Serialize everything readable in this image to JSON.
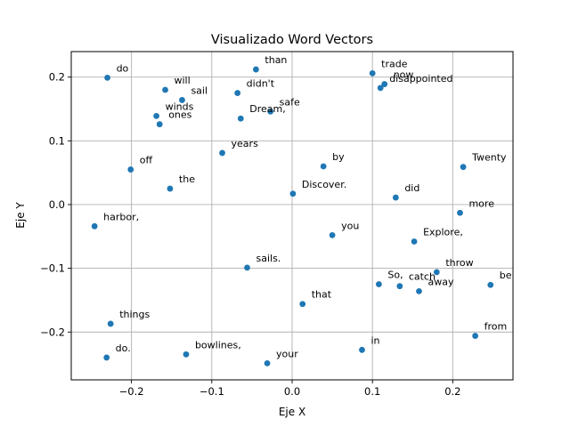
{
  "chart_data": {
    "type": "scatter",
    "title": "Visualizado Word Vectors",
    "xlabel": "Eje X",
    "ylabel": "Eje Y",
    "xlim": [
      -0.275,
      0.275
    ],
    "ylim": [
      -0.275,
      0.24
    ],
    "xticks": [
      -0.2,
      -0.1,
      0.0,
      0.1,
      0.2
    ],
    "xtick_labels": [
      "−0.2",
      "−0.1",
      "0.0",
      "0.1",
      "0.2"
    ],
    "yticks": [
      -0.2,
      -0.1,
      0.0,
      0.1,
      0.2
    ],
    "ytick_labels": [
      "−0.2",
      "−0.1",
      "0.0",
      "0.1",
      "0.2"
    ],
    "grid": true,
    "marker_color": "#1f77b4",
    "points": [
      {
        "label": "do",
        "x": -0.23,
        "y": 0.199
      },
      {
        "label": "will",
        "x": -0.158,
        "y": 0.18
      },
      {
        "label": "sail",
        "x": -0.137,
        "y": 0.164
      },
      {
        "label": "winds",
        "x": -0.169,
        "y": 0.139
      },
      {
        "label": "ones",
        "x": -0.165,
        "y": 0.126
      },
      {
        "label": "than",
        "x": -0.045,
        "y": 0.212
      },
      {
        "label": "didn't",
        "x": -0.068,
        "y": 0.175
      },
      {
        "label": "safe",
        "x": -0.027,
        "y": 0.146
      },
      {
        "label": "Dream,",
        "x": -0.064,
        "y": 0.135
      },
      {
        "label": "trade",
        "x": 0.1,
        "y": 0.206
      },
      {
        "label": "now",
        "x": 0.115,
        "y": 0.189
      },
      {
        "label": "disappointed",
        "x": 0.11,
        "y": 0.183
      },
      {
        "label": "years",
        "x": -0.087,
        "y": 0.081
      },
      {
        "label": "off",
        "x": -0.201,
        "y": 0.055
      },
      {
        "label": "the",
        "x": -0.152,
        "y": 0.025
      },
      {
        "label": "by",
        "x": 0.039,
        "y": 0.06
      },
      {
        "label": "Twenty",
        "x": 0.213,
        "y": 0.059
      },
      {
        "label": "Discover.",
        "x": 0.001,
        "y": 0.017
      },
      {
        "label": "did",
        "x": 0.129,
        "y": 0.011
      },
      {
        "label": "more",
        "x": 0.209,
        "y": -0.013
      },
      {
        "label": "harbor,",
        "x": -0.246,
        "y": -0.034
      },
      {
        "label": "you",
        "x": 0.05,
        "y": -0.048
      },
      {
        "label": "Explore,",
        "x": 0.152,
        "y": -0.058
      },
      {
        "label": "sails.",
        "x": -0.056,
        "y": -0.099
      },
      {
        "label": "throw",
        "x": 0.18,
        "y": -0.106
      },
      {
        "label": "be",
        "x": 0.247,
        "y": -0.126
      },
      {
        "label": "So,",
        "x": 0.108,
        "y": -0.125
      },
      {
        "label": "catch",
        "x": 0.134,
        "y": -0.128
      },
      {
        "label": "away",
        "x": 0.158,
        "y": -0.136
      },
      {
        "label": "that",
        "x": 0.013,
        "y": -0.156
      },
      {
        "label": "things",
        "x": -0.226,
        "y": -0.187
      },
      {
        "label": "from",
        "x": 0.228,
        "y": -0.206
      },
      {
        "label": "in",
        "x": 0.087,
        "y": -0.228
      },
      {
        "label": "bowlines,",
        "x": -0.132,
        "y": -0.235
      },
      {
        "label": "do.",
        "x": -0.231,
        "y": -0.24
      },
      {
        "label": "your",
        "x": -0.031,
        "y": -0.249
      }
    ]
  }
}
